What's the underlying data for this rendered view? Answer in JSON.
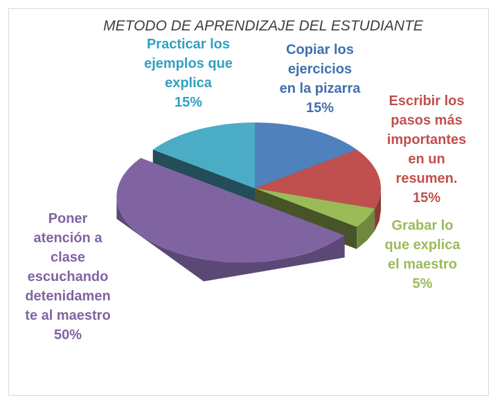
{
  "chart_data": {
    "type": "pie3d",
    "title": "METODO DE APRENDIZAJE DEL ESTUDIANTE",
    "categories": [
      "Copiar los ejercicios en la pizarra",
      "Escribir los pasos más importantes en un resumen.",
      "Grabar lo que explica el maestro",
      "Poner atención a clase escuchando detenidamente al maestro",
      "Practicar los ejemplos que explica"
    ],
    "values": [
      15,
      15,
      5,
      50,
      15
    ],
    "value_labels": [
      "15%",
      "15%",
      "5%",
      "50%",
      "15%"
    ],
    "colors": [
      "#4f81bd",
      "#c0504d",
      "#9bbb59",
      "#8064a2",
      "#4bacc6"
    ],
    "label_colors": [
      "#3f6fae",
      "#c0504d",
      "#9bbb59",
      "#8064a2",
      "#31a0c0"
    ],
    "exploded": [
      3
    ]
  }
}
